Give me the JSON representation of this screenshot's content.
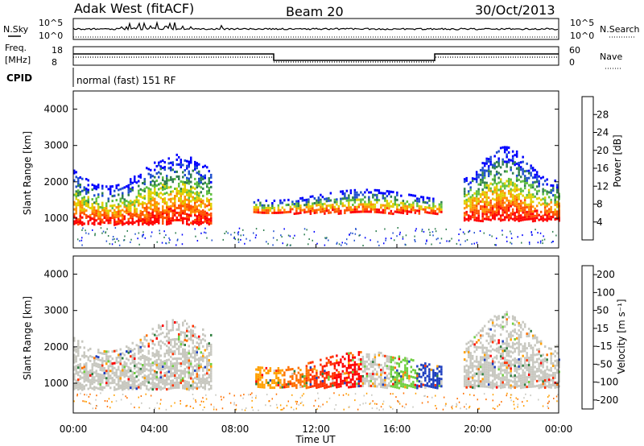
{
  "header": {
    "station": "Adak West (fitACF)",
    "beam": "Beam 20",
    "date": "30/Oct/2013"
  },
  "status_panels": {
    "nsky_label": "N.Sky",
    "nsky_ticks": [
      "10^5",
      "10^0"
    ],
    "nsearch_label": "N.Search",
    "nsearch_ticks": [
      "10^5",
      "10^0"
    ],
    "freq_label_1": "Freq.",
    "freq_label_2": "[MHz]",
    "freq_ticks": [
      "18",
      "8"
    ],
    "nave_label": "Nave",
    "nave_ticks": [
      "60",
      "0"
    ],
    "cpid_label": "CPID",
    "cpid_text": "normal (fast) 151 RF"
  },
  "colors": {
    "power_scale": [
      "#0000ff",
      "#1f4fcf",
      "#2f7f4f",
      "#5fbf3f",
      "#e0d000",
      "#ff9000",
      "#ff5000",
      "#ff0000"
    ],
    "velocity_scale": [
      "#1f3fbf",
      "#2f7f3f",
      "#6fcf3f",
      "#c8c8c0",
      "#ffa000",
      "#ff7000",
      "#ff3000",
      "#ff0000"
    ]
  },
  "chart_data": [
    {
      "type": "heatmap",
      "title": "Power",
      "ylabel": "Slant Range [km]",
      "ylim": [
        180,
        4500
      ],
      "xlim": [
        0,
        24
      ],
      "x_ticks": [
        "00:00",
        "04:00",
        "08:00",
        "12:00",
        "16:00",
        "20:00",
        "00:00"
      ],
      "y_ticks": [
        "1000",
        "2000",
        "3000",
        "4000"
      ],
      "colorbar": {
        "label": "Power [dB]",
        "ticks": [
          "28",
          "24",
          "20",
          "16",
          "12",
          "8",
          "4"
        ],
        "range": [
          0,
          30
        ]
      },
      "regions": [
        {
          "t0": 0.0,
          "t1": 6.8,
          "r_low": 850,
          "r_high": 2600,
          "power_dB": 22
        },
        {
          "t0": 8.9,
          "t1": 18.2,
          "r_low": 1150,
          "r_high": 1750,
          "power_dB": 24
        },
        {
          "t0": 19.3,
          "t1": 24.0,
          "r_low": 950,
          "r_high": 2800,
          "power_dB": 20
        }
      ]
    },
    {
      "type": "heatmap",
      "title": "Velocity",
      "ylabel": "Slant Range [km]",
      "xlabel": "Time UT",
      "ylim": [
        180,
        4500
      ],
      "xlim": [
        0,
        24
      ],
      "x_ticks": [
        "00:00",
        "04:00",
        "08:00",
        "12:00",
        "16:00",
        "20:00",
        "00:00"
      ],
      "y_ticks": [
        "1000",
        "2000",
        "3000",
        "4000"
      ],
      "colorbar": {
        "label": "Velocity [m s⁻¹]",
        "ticks": [
          "200",
          "100",
          "50",
          "15",
          "-15",
          "-50",
          "-100",
          "-200"
        ],
        "range": [
          -250,
          250
        ]
      },
      "regions": [
        {
          "t0": 0.0,
          "t1": 6.8,
          "r_low": 850,
          "r_high": 2600,
          "velocity": 0
        },
        {
          "t0": 9.0,
          "t1": 18.2,
          "r_low": 900,
          "r_high": 1800,
          "velocity": -60
        },
        {
          "t0": 19.3,
          "t1": 24.0,
          "r_low": 900,
          "r_high": 2800,
          "velocity": 0
        }
      ]
    }
  ]
}
